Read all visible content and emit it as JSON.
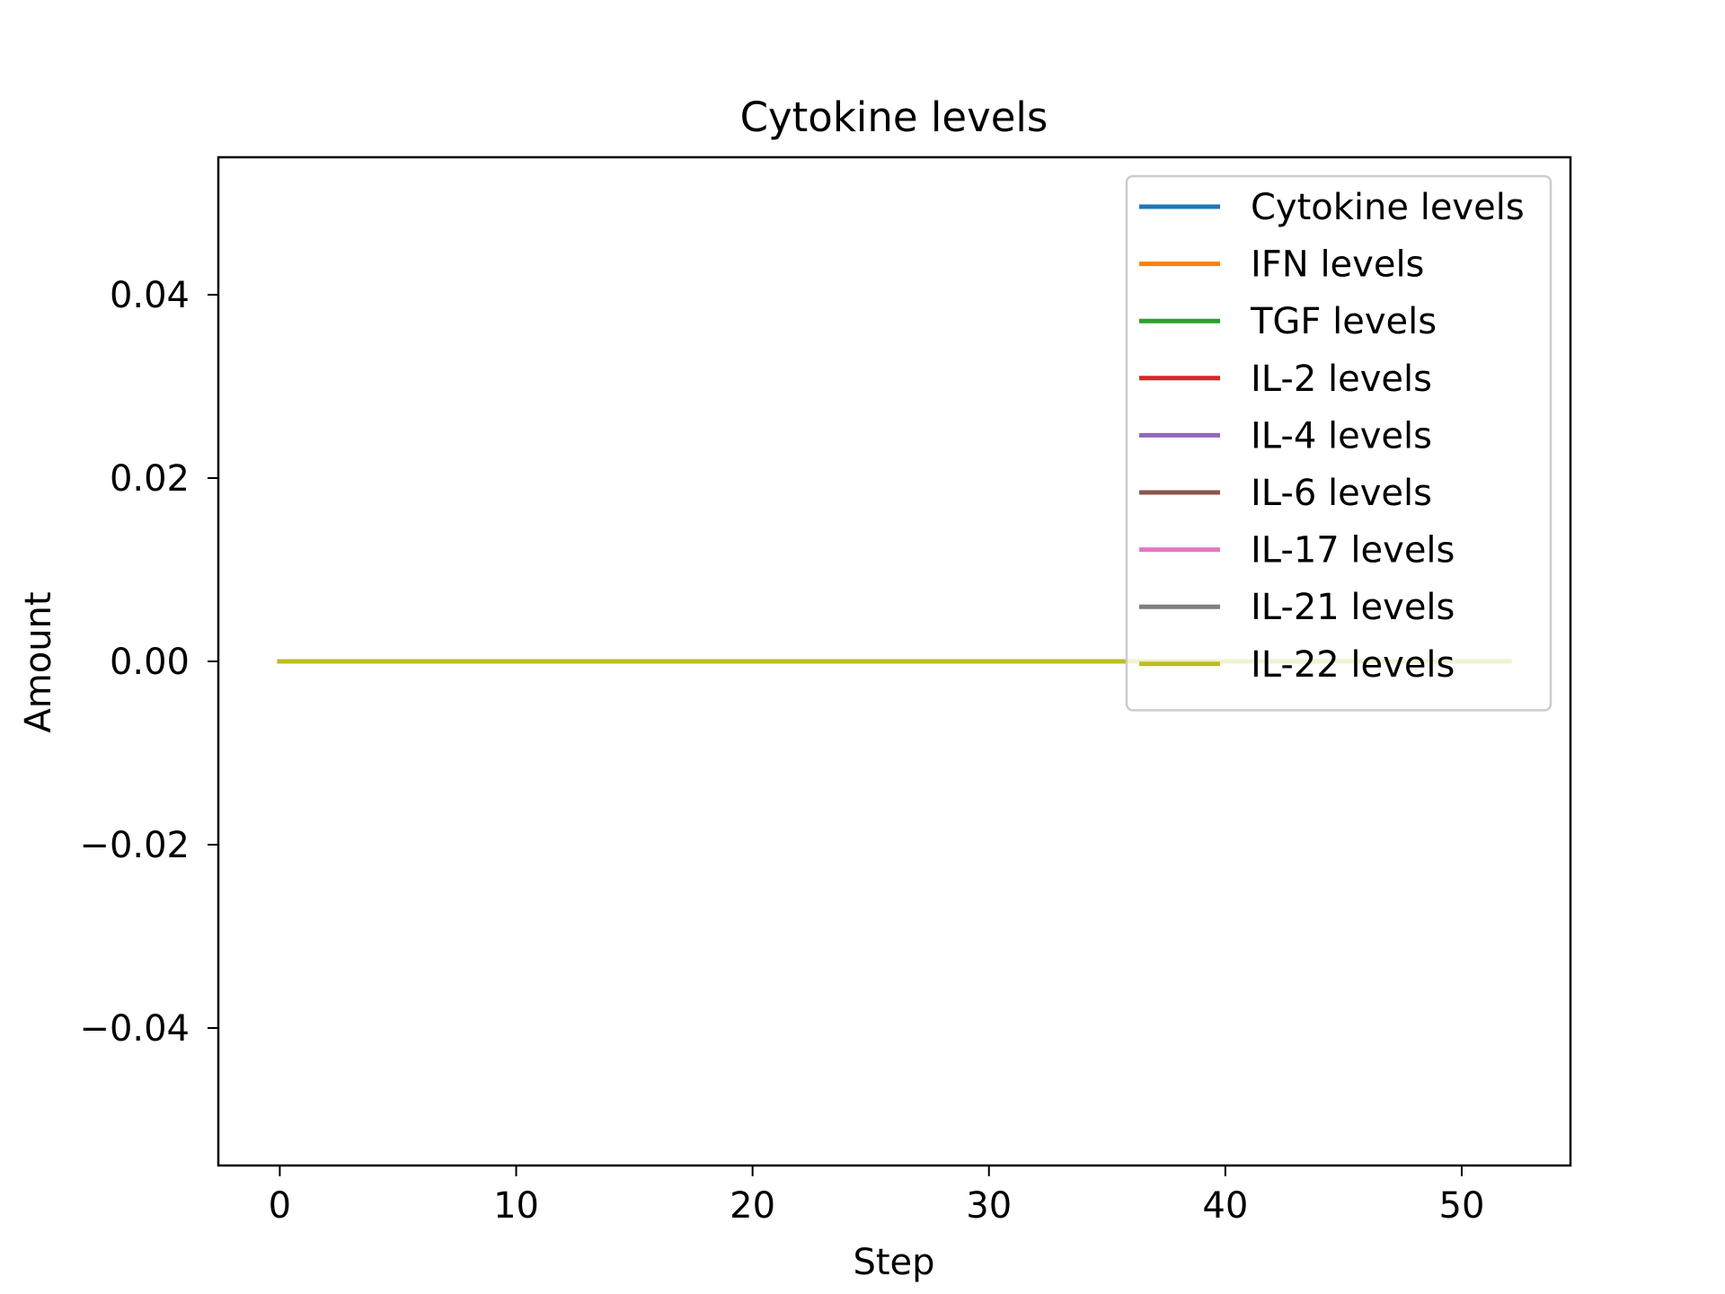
{
  "chart_data": {
    "type": "line",
    "title": "Cytokine levels",
    "xlabel": "Step",
    "ylabel": "Amount",
    "xlim": [
      -2.6,
      54.6
    ],
    "ylim": [
      -0.055,
      0.055
    ],
    "xticks": [
      0,
      10,
      20,
      30,
      40,
      50
    ],
    "xtick_labels": [
      "0",
      "10",
      "20",
      "30",
      "40",
      "50"
    ],
    "yticks": [
      -0.04,
      -0.02,
      0.0,
      0.02,
      0.04
    ],
    "ytick_labels": [
      "−0.04",
      "−0.02",
      "0.00",
      "0.02",
      "0.04"
    ],
    "grid": false,
    "legend_position": "top-right",
    "x": [
      0,
      1,
      2,
      3,
      4,
      5,
      6,
      7,
      8,
      9,
      10,
      11,
      12,
      13,
      14,
      15,
      16,
      17,
      18,
      19,
      20,
      21,
      22,
      23,
      24,
      25,
      26,
      27,
      28,
      29,
      30,
      31,
      32,
      33,
      34,
      35,
      36,
      37,
      38,
      39,
      40,
      41,
      42,
      43,
      44,
      45,
      46,
      47,
      48,
      49,
      50,
      51,
      52
    ],
    "series": [
      {
        "name": "Cytokine levels",
        "color": "#1f77b4",
        "values": [
          0,
          0,
          0,
          0,
          0,
          0,
          0,
          0,
          0,
          0,
          0,
          0,
          0,
          0,
          0,
          0,
          0,
          0,
          0,
          0,
          0,
          0,
          0,
          0,
          0,
          0,
          0,
          0,
          0,
          0,
          0,
          0,
          0,
          0,
          0,
          0,
          0,
          0,
          0,
          0,
          0,
          0,
          0,
          0,
          0,
          0,
          0,
          0,
          0,
          0,
          0,
          0,
          0
        ]
      },
      {
        "name": "IFN levels",
        "color": "#ff7f0e",
        "values": [
          0,
          0,
          0,
          0,
          0,
          0,
          0,
          0,
          0,
          0,
          0,
          0,
          0,
          0,
          0,
          0,
          0,
          0,
          0,
          0,
          0,
          0,
          0,
          0,
          0,
          0,
          0,
          0,
          0,
          0,
          0,
          0,
          0,
          0,
          0,
          0,
          0,
          0,
          0,
          0,
          0,
          0,
          0,
          0,
          0,
          0,
          0,
          0,
          0,
          0,
          0,
          0,
          0
        ]
      },
      {
        "name": "TGF levels",
        "color": "#2ca02c",
        "values": [
          0,
          0,
          0,
          0,
          0,
          0,
          0,
          0,
          0,
          0,
          0,
          0,
          0,
          0,
          0,
          0,
          0,
          0,
          0,
          0,
          0,
          0,
          0,
          0,
          0,
          0,
          0,
          0,
          0,
          0,
          0,
          0,
          0,
          0,
          0,
          0,
          0,
          0,
          0,
          0,
          0,
          0,
          0,
          0,
          0,
          0,
          0,
          0,
          0,
          0,
          0,
          0,
          0
        ]
      },
      {
        "name": "IL-2 levels",
        "color": "#d62728",
        "values": [
          0,
          0,
          0,
          0,
          0,
          0,
          0,
          0,
          0,
          0,
          0,
          0,
          0,
          0,
          0,
          0,
          0,
          0,
          0,
          0,
          0,
          0,
          0,
          0,
          0,
          0,
          0,
          0,
          0,
          0,
          0,
          0,
          0,
          0,
          0,
          0,
          0,
          0,
          0,
          0,
          0,
          0,
          0,
          0,
          0,
          0,
          0,
          0,
          0,
          0,
          0,
          0,
          0
        ]
      },
      {
        "name": "IL-4 levels",
        "color": "#9467bd",
        "values": [
          0,
          0,
          0,
          0,
          0,
          0,
          0,
          0,
          0,
          0,
          0,
          0,
          0,
          0,
          0,
          0,
          0,
          0,
          0,
          0,
          0,
          0,
          0,
          0,
          0,
          0,
          0,
          0,
          0,
          0,
          0,
          0,
          0,
          0,
          0,
          0,
          0,
          0,
          0,
          0,
          0,
          0,
          0,
          0,
          0,
          0,
          0,
          0,
          0,
          0,
          0,
          0,
          0
        ]
      },
      {
        "name": "IL-6 levels",
        "color": "#8c564b",
        "values": [
          0,
          0,
          0,
          0,
          0,
          0,
          0,
          0,
          0,
          0,
          0,
          0,
          0,
          0,
          0,
          0,
          0,
          0,
          0,
          0,
          0,
          0,
          0,
          0,
          0,
          0,
          0,
          0,
          0,
          0,
          0,
          0,
          0,
          0,
          0,
          0,
          0,
          0,
          0,
          0,
          0,
          0,
          0,
          0,
          0,
          0,
          0,
          0,
          0,
          0,
          0,
          0,
          0
        ]
      },
      {
        "name": "IL-17 levels",
        "color": "#e377c2",
        "values": [
          0,
          0,
          0,
          0,
          0,
          0,
          0,
          0,
          0,
          0,
          0,
          0,
          0,
          0,
          0,
          0,
          0,
          0,
          0,
          0,
          0,
          0,
          0,
          0,
          0,
          0,
          0,
          0,
          0,
          0,
          0,
          0,
          0,
          0,
          0,
          0,
          0,
          0,
          0,
          0,
          0,
          0,
          0,
          0,
          0,
          0,
          0,
          0,
          0,
          0,
          0,
          0,
          0
        ]
      },
      {
        "name": "IL-21 levels",
        "color": "#7f7f7f",
        "values": [
          0,
          0,
          0,
          0,
          0,
          0,
          0,
          0,
          0,
          0,
          0,
          0,
          0,
          0,
          0,
          0,
          0,
          0,
          0,
          0,
          0,
          0,
          0,
          0,
          0,
          0,
          0,
          0,
          0,
          0,
          0,
          0,
          0,
          0,
          0,
          0,
          0,
          0,
          0,
          0,
          0,
          0,
          0,
          0,
          0,
          0,
          0,
          0,
          0,
          0,
          0,
          0,
          0
        ]
      },
      {
        "name": "IL-22 levels",
        "color": "#bcbd22",
        "values": [
          0,
          0,
          0,
          0,
          0,
          0,
          0,
          0,
          0,
          0,
          0,
          0,
          0,
          0,
          0,
          0,
          0,
          0,
          0,
          0,
          0,
          0,
          0,
          0,
          0,
          0,
          0,
          0,
          0,
          0,
          0,
          0,
          0,
          0,
          0,
          0,
          0,
          0,
          0,
          0,
          0,
          0,
          0,
          0,
          0,
          0,
          0,
          0,
          0,
          0,
          0,
          0,
          0
        ]
      }
    ]
  }
}
